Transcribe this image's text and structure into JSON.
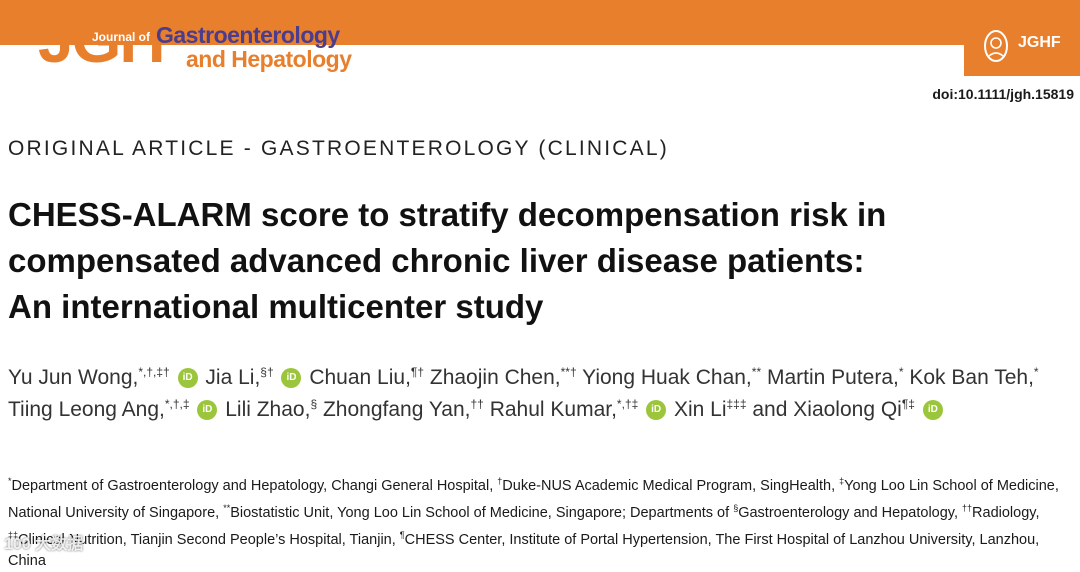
{
  "header": {
    "logo_text": "JGH",
    "journal_of": "Journal of",
    "journal_line1": "Gastroenterology",
    "journal_line2": "and Hepatology",
    "badge_label": "JGHF",
    "colors": {
      "band": "#e87f2d",
      "purple": "#4b3c8c"
    }
  },
  "doi": "doi:10.1111/jgh.15819",
  "article_type": "ORIGINAL ARTICLE - GASTROENTEROLOGY (CLINICAL)",
  "title": {
    "line1": "CHESS-ALARM score to stratify decompensation risk in",
    "line2": "compensated advanced chronic liver disease patients:",
    "line3": "An international multicenter study"
  },
  "authors": [
    {
      "name": "Yu Jun Wong,",
      "sup": "*,†,‡†",
      "orcid": true
    },
    {
      "name": "Jia Li,",
      "sup": "§†",
      "orcid": true
    },
    {
      "name": "Chuan Liu,",
      "sup": "¶†",
      "orcid": false
    },
    {
      "name": "Zhaojin Chen,",
      "sup": "**†",
      "orcid": false
    },
    {
      "name": "Yiong Huak Chan,",
      "sup": "**",
      "orcid": false
    },
    {
      "name": "Martin Putera,",
      "sup": "*",
      "orcid": false
    },
    {
      "name": "Kok Ban Teh,",
      "sup": "*",
      "orcid": false
    },
    {
      "name": "Tiing Leong Ang,",
      "sup": "*,†,‡",
      "orcid": true
    },
    {
      "name": "Lili Zhao,",
      "sup": "§",
      "orcid": false
    },
    {
      "name": "Zhongfang Yan,",
      "sup": "††",
      "orcid": false
    },
    {
      "name": "Rahul Kumar,",
      "sup": "*,†‡",
      "orcid": true
    },
    {
      "name": "Xin Li",
      "sup": "‡‡‡",
      "orcid": false
    },
    {
      "name": "and",
      "sup": "",
      "orcid": false
    },
    {
      "name": "Xiaolong Qi",
      "sup": "¶‡",
      "orcid": true
    }
  ],
  "orcid_label": "iD",
  "affiliations": [
    {
      "sup": "*",
      "text": "Department of Gastroenterology and Hepatology, Changi General Hospital, "
    },
    {
      "sup": "†",
      "text": "Duke-NUS Academic Medical Program, SingHealth, "
    },
    {
      "sup": "‡",
      "text": "Yong Loo Lin School of Medicine, National University of Singapore, "
    },
    {
      "sup": "**",
      "text": "Biostatistic Unit, Yong Loo Lin School of Medicine, Singapore; Departments of "
    },
    {
      "sup": "§",
      "text": "Gastroenterology and Hepatology, "
    },
    {
      "sup": "††",
      "text": "Radiology, "
    },
    {
      "sup": "‡‡",
      "text": "Clinical Nutrition, Tianjin Second People’s Hospital, Tianjin, "
    },
    {
      "sup": "¶",
      "text": "CHESS Center, Institute of Portal Hypertension, The First Hospital of Lanzhou University, Lanzhou, China"
    }
  ],
  "watermark": "100 大数据"
}
